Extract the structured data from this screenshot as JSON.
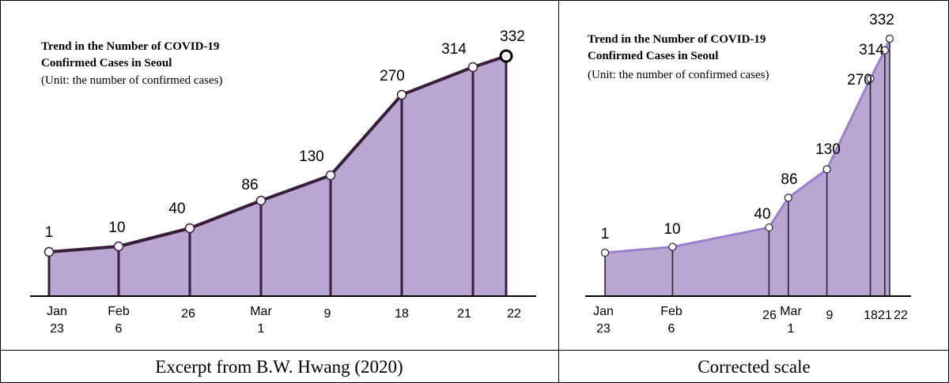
{
  "captions": {
    "left": "Excerpt from B.W. Hwang (2020)",
    "right": "Corrected scale"
  },
  "colors": {
    "fill": "#b9a6d1",
    "line": "#3a1d3d",
    "right_line": "#9a7fd0"
  },
  "chart_data": [
    {
      "type": "area",
      "title": "Trend in the Number of COVID-19 Confirmed Cases in Seoul",
      "title_lines": [
        "Trend in the Number of COVID-19",
        "Confirmed Cases in Seoul"
      ],
      "subtitle": "(Unit: the number of confirmed cases)",
      "x": [
        "Jan 23",
        "Feb 6",
        "26",
        "Mar 1",
        "9",
        "18",
        "21",
        "22"
      ],
      "tick_labels": [
        [
          "Jan",
          "23"
        ],
        [
          "Feb",
          "6"
        ],
        [
          "26"
        ],
        [
          "Mar",
          "1"
        ],
        [
          "9"
        ],
        [
          "18"
        ],
        [
          "21"
        ],
        [
          "22"
        ]
      ],
      "values": [
        1,
        10,
        40,
        86,
        130,
        270,
        314,
        332
      ],
      "x_scale": "evenly spaced categories",
      "y_scale": "not proportional to values"
    },
    {
      "type": "area",
      "title": "Trend in the Number of COVID-19 Confirmed Cases in Seoul",
      "title_lines": [
        "Trend in the Number of COVID-19",
        "Confirmed Cases in Seoul"
      ],
      "subtitle": "(Unit: the number of confirmed cases)",
      "x": [
        "Jan 23",
        "Feb 6",
        "26",
        "Mar 1",
        "9",
        "18",
        "21",
        "22"
      ],
      "tick_labels": [
        [
          "Jan",
          "23"
        ],
        [
          "Feb",
          "6"
        ],
        [
          "26"
        ],
        [
          "Mar",
          "1"
        ],
        [
          "9"
        ],
        [
          "18"
        ],
        [
          "21"
        ],
        [
          "22"
        ]
      ],
      "day_offsets": [
        0,
        14,
        34,
        38,
        46,
        55,
        58,
        59
      ],
      "values": [
        1,
        10,
        40,
        86,
        130,
        270,
        314,
        332
      ],
      "x_scale": "proportional to date",
      "y_scale": "proportional to values"
    }
  ]
}
